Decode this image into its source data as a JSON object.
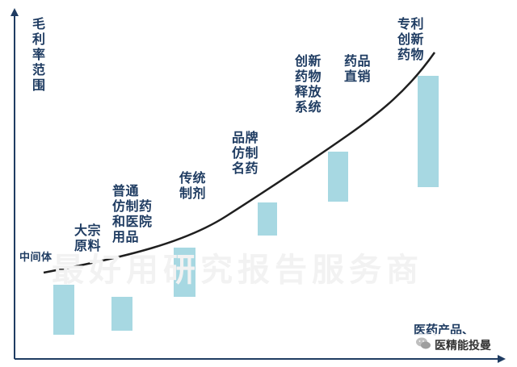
{
  "diagram": {
    "y_axis_label": "毛利率范围",
    "x_axis_label": "医药产品、",
    "watermark": "最好用研究报告服务商",
    "badge_text": "医精能投曼",
    "colors": {
      "bar": "#a7d8e2",
      "curve": "#1f1f1f",
      "axis": "#1f3c62",
      "text": "#1f3c62"
    },
    "categories": [
      {
        "label": "中间体"
      },
      {
        "label": "大宗\n原料"
      },
      {
        "label": "普通\n仿制药\n和医院\n用品"
      },
      {
        "label": "传统\n制剂"
      },
      {
        "label": "品牌\n仿制\n名药"
      },
      {
        "label": "创新\n药物\n释放\n系统"
      },
      {
        "label": "药品\n直销"
      },
      {
        "label": "专利\n创新\n药物"
      }
    ]
  }
}
